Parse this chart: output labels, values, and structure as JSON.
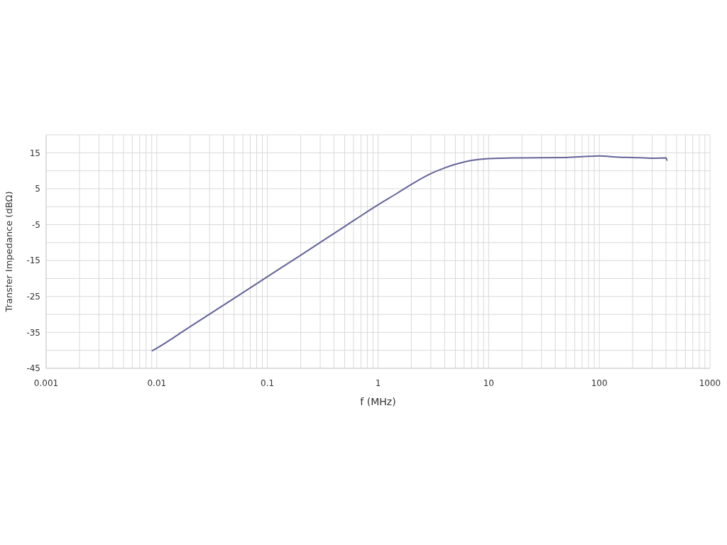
{
  "chart_data": {
    "type": "line",
    "xlabel": "f (MHz)",
    "ylabel": "Transfer Impedance (dBΩ)",
    "log": "x",
    "grid": true,
    "legend": false,
    "marker": "none",
    "line_style": "solid",
    "xlim": [
      0.001,
      1000
    ],
    "xticks": [
      0.001,
      {
        "value": 0.002,
        "label": null
      },
      {
        "value": 0.003,
        "label": null
      },
      {
        "value": 0.004,
        "label": null
      },
      {
        "value": 0.005,
        "label": null
      },
      {
        "value": 0.006,
        "label": null
      },
      {
        "value": 0.007,
        "label": null
      },
      {
        "value": 0.008,
        "label": null
      },
      {
        "value": 0.009,
        "label": null
      },
      0.01,
      {
        "value": 0.02,
        "label": null
      },
      {
        "value": 0.03,
        "label": null
      },
      {
        "value": 0.04,
        "label": null
      },
      {
        "value": 0.05,
        "label": null
      },
      {
        "value": 0.06,
        "label": null
      },
      {
        "value": 0.07,
        "label": null
      },
      {
        "value": 0.08,
        "label": null
      },
      {
        "value": 0.09,
        "label": null
      },
      0.1,
      {
        "value": 0.2,
        "label": null
      },
      {
        "value": 0.3,
        "label": null
      },
      {
        "value": 0.4,
        "label": null
      },
      {
        "value": 0.5,
        "label": null
      },
      {
        "value": 0.6,
        "label": null
      },
      {
        "value": 0.7,
        "label": null
      },
      {
        "value": 0.8,
        "label": null
      },
      {
        "value": 0.9,
        "label": null
      },
      1,
      {
        "value": 2,
        "label": null
      },
      {
        "value": 3,
        "label": null
      },
      {
        "value": 4,
        "label": null
      },
      {
        "value": 5,
        "label": null
      },
      {
        "value": 6,
        "label": null
      },
      {
        "value": 7,
        "label": null
      },
      {
        "value": 8,
        "label": null
      },
      {
        "value": 9,
        "label": null
      },
      10,
      {
        "value": 20,
        "label": null
      },
      {
        "value": 30,
        "label": null
      },
      {
        "value": 40,
        "label": null
      },
      {
        "value": 50,
        "label": null
      },
      {
        "value": 60,
        "label": null
      },
      {
        "value": 70,
        "label": null
      },
      {
        "value": 80,
        "label": null
      },
      {
        "value": 90,
        "label": null
      },
      100,
      {
        "value": 200,
        "label": null
      },
      {
        "value": 300,
        "label": null
      },
      {
        "value": 400,
        "label": null
      },
      {
        "value": 500,
        "label": null
      },
      {
        "value": 600,
        "label": null
      },
      {
        "value": 700,
        "label": null
      },
      {
        "value": 800,
        "label": null
      },
      {
        "value": 900,
        "label": null
      },
      1000
    ],
    "ylim": [
      -45,
      20
    ],
    "yticks": [
      -45,
      {
        "value": -40,
        "label": null
      },
      -35,
      {
        "value": -30,
        "label": null
      },
      -25,
      {
        "value": -20,
        "label": null
      },
      -15,
      {
        "value": -10,
        "label": null
      },
      -5,
      {
        "value": 0,
        "label": null
      },
      5,
      {
        "value": 10,
        "label": null
      },
      15,
      {
        "value": 20,
        "label": null
      }
    ],
    "x": [
      0.009,
      0.01,
      0.02,
      0.05,
      0.1,
      0.2,
      0.5,
      1,
      1.5,
      2,
      3,
      4,
      5,
      7,
      10,
      20,
      50,
      80,
      100,
      150,
      200,
      300,
      400,
      410
    ],
    "series": [
      {
        "color": "#64649a",
        "values": [
          -40.2,
          -39.4,
          -33.4,
          -25.5,
          -19.5,
          -13.5,
          -5.5,
          0.5,
          3.8,
          6.2,
          9.2,
          10.8,
          11.8,
          12.9,
          13.4,
          13.6,
          13.7,
          14,
          14.1,
          13.8,
          13.7,
          13.5,
          13.6,
          12.8
        ]
      }
    ]
  }
}
